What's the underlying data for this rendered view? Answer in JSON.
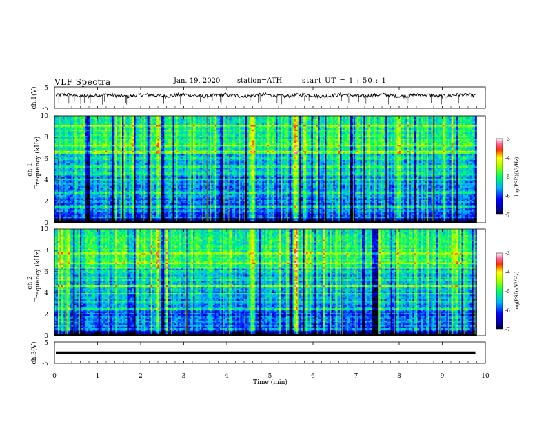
{
  "header": {
    "title": "VLF  Spectra",
    "date": "Jan. 19, 2020",
    "station": "station=ATH",
    "start_ut": "start  UT  =   1 : 50 : 1"
  },
  "chart_data": [
    {
      "type": "line",
      "panel": "ch1-waveform",
      "ylabel": "ch.1(V)",
      "ylim": [
        -5,
        5
      ],
      "yticks": [
        "5",
        "-5"
      ],
      "baseline": 1.0,
      "color": "#000000"
    },
    {
      "type": "heatmap",
      "panel": "ch1-spectrogram",
      "ylabel_top": "ch.1",
      "ylabel": "Frequency  (kHz)",
      "ylim": [
        0,
        10
      ],
      "yticks": [
        "0",
        "2",
        "4",
        "6",
        "8",
        "10"
      ],
      "colorbar": {
        "label": "log(PSD)(V²/Hz)",
        "range": [
          -7,
          -3
        ],
        "ticks": [
          "-3",
          "-4",
          "-5",
          "-6",
          "-7"
        ]
      },
      "intense_bursts_min": [
        2.4,
        4.6,
        5.6,
        8.0
      ]
    },
    {
      "type": "heatmap",
      "panel": "ch2-spectrogram",
      "ylabel_top": "ch.2",
      "ylabel": "Frequency  (kHz)",
      "ylim": [
        0,
        10
      ],
      "yticks": [
        "0",
        "2",
        "4",
        "6",
        "8",
        "10"
      ],
      "colorbar": {
        "label": "log(PSD)(V²/Hz)",
        "range": [
          -7,
          -3
        ],
        "ticks": [
          "-3",
          "-4",
          "-5",
          "-6",
          "-7"
        ]
      },
      "intense_bursts_min": [
        2.4,
        4.6,
        5.6,
        8.0
      ]
    },
    {
      "type": "line",
      "panel": "ch3-waveform",
      "ylabel": "ch.3(V)",
      "ylim": [
        -5,
        5
      ],
      "yticks": [
        "5",
        "-5"
      ],
      "baseline": 0.0,
      "color": "#000000"
    }
  ],
  "xaxis": {
    "label": "Time  (min)",
    "xlim": [
      0,
      10
    ],
    "ticks": [
      "0",
      "1",
      "2",
      "3",
      "4",
      "5",
      "6",
      "7",
      "8",
      "9",
      "10"
    ],
    "data_end": 9.8
  }
}
